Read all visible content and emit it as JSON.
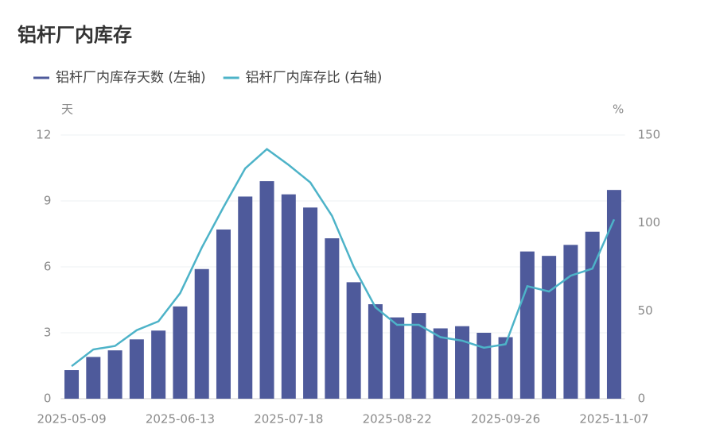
{
  "chart_data": {
    "type": "bar_line",
    "title": "铝杆厂内库存",
    "y_unit": "天",
    "y2_unit": "%",
    "categories": [
      "2025-05-09",
      null,
      null,
      null,
      null,
      "2025-06-13",
      null,
      null,
      null,
      null,
      "2025-07-18",
      null,
      null,
      null,
      null,
      "2025-08-22",
      null,
      null,
      null,
      null,
      "2025-09-26",
      null,
      null,
      null,
      null,
      "2025-11-07"
    ],
    "series": [
      {
        "name": "铝杆厂内库存天数 (左轴)",
        "type": "bar",
        "color": "#4e5a9b",
        "values": [
          1.3,
          1.9,
          2.2,
          2.7,
          3.1,
          4.2,
          5.9,
          7.7,
          9.2,
          9.9,
          9.3,
          8.7,
          7.3,
          5.3,
          4.3,
          3.7,
          3.9,
          3.2,
          3.3,
          3.0,
          2.8,
          6.7,
          6.5,
          7.0,
          7.6,
          9.5
        ]
      },
      {
        "name": "铝杆厂内库存比 (右轴)",
        "type": "line",
        "axis": "y2",
        "color": "#4db3c8",
        "values": [
          18.5,
          28,
          30,
          39,
          44,
          60,
          86,
          109,
          131,
          142,
          133,
          123,
          104,
          75,
          52,
          42,
          42,
          35,
          33,
          29,
          31,
          64,
          61,
          70,
          74,
          102
        ]
      }
    ],
    "ylim": [
      0,
      12
    ],
    "yticks": [
      0,
      3,
      6,
      9,
      12
    ],
    "y2lim": [
      0,
      150
    ],
    "y2ticks": [
      0,
      50,
      100,
      150
    ],
    "grid": true
  }
}
